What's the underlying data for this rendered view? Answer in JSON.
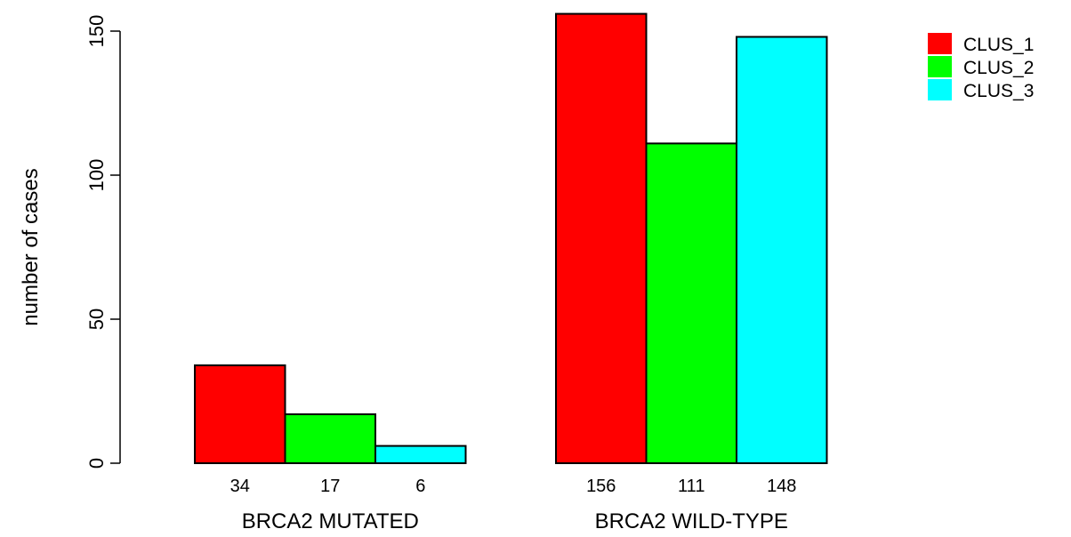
{
  "chart_data": {
    "type": "bar",
    "title": "",
    "xlabel": "",
    "ylabel": "number of cases",
    "ylim": [
      0,
      160
    ],
    "yticks": [
      0,
      50,
      100,
      150
    ],
    "grid": false,
    "legend_position": "top-right",
    "groups": [
      "BRCA2 MUTATED",
      "BRCA2 WILD-TYPE"
    ],
    "series": [
      {
        "name": "CLUS_1",
        "color": "#FF0000",
        "values": [
          34,
          156
        ]
      },
      {
        "name": "CLUS_2",
        "color": "#00FF00",
        "values": [
          17,
          111
        ]
      },
      {
        "name": "CLUS_3",
        "color": "#00FFFF",
        "values": [
          6,
          148
        ]
      }
    ]
  }
}
